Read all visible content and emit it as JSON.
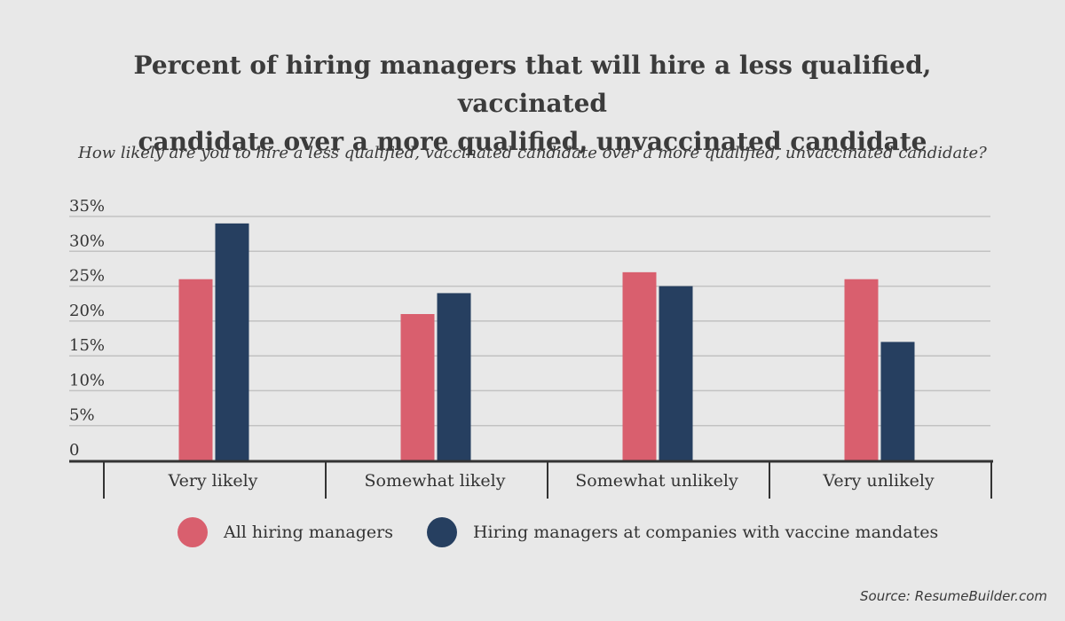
{
  "title_line1": "Percent of hiring managers that will hire a less qualified, vaccinated",
  "title_line2": "candidate over a more qualified, unvaccinated candidate",
  "subtitle": "How likely are you to hire a less qualified, vaccinated candidate over a more qualified, unvaccinated candidate?",
  "source": "Source: ResumeBuilder.com",
  "colors": {
    "series1": "#d95f6e",
    "series2": "#263f60",
    "grid": "#c2c2c2",
    "axis": "#333333"
  },
  "chart_data": {
    "type": "bar",
    "categories": [
      "Very likely",
      "Somewhat likely",
      "Somewhat unlikely",
      "Very unlikely"
    ],
    "series": [
      {
        "name": "All hiring managers",
        "values": [
          26,
          21,
          27,
          26
        ]
      },
      {
        "name": "Hiring managers at companies with vaccine mandates",
        "values": [
          34,
          24,
          25,
          17
        ]
      }
    ],
    "yticks": [
      "0",
      "5%",
      "10%",
      "15%",
      "20%",
      "25%",
      "30%",
      "35%"
    ],
    "ylim": [
      0,
      35
    ],
    "grid": true,
    "legend": "bottom"
  }
}
